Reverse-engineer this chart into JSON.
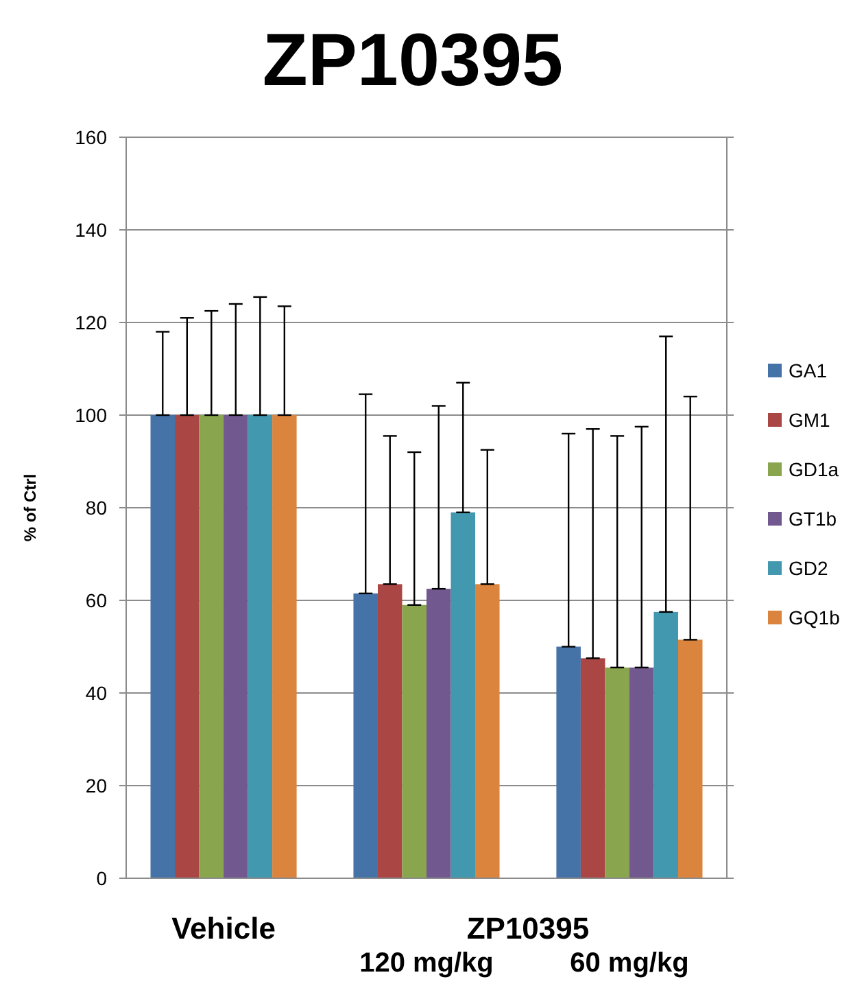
{
  "chart_data": {
    "type": "bar",
    "title": "ZP10395",
    "ylabel": "% of Ctrl",
    "categories": [
      "Vehicle",
      "120 mg/kg",
      "60 mg/kg"
    ],
    "annotations": [
      "ZP10395"
    ],
    "ylim": [
      0,
      160
    ],
    "yticks": [
      0,
      20,
      40,
      60,
      80,
      100,
      120,
      140,
      160
    ],
    "grid": "y",
    "legend": "right",
    "series": [
      {
        "name": "GA1",
        "color": "#4572a7",
        "values": [
          100,
          61.5,
          50
        ],
        "errors": [
          [
            100,
            118
          ],
          [
            61.5,
            104.5
          ],
          [
            50,
            96
          ]
        ]
      },
      {
        "name": "GM1",
        "color": "#aa4643",
        "values": [
          100,
          63.5,
          47.5
        ],
        "errors": [
          [
            100,
            121
          ],
          [
            63.5,
            95.5
          ],
          [
            47.5,
            97
          ]
        ]
      },
      {
        "name": "GD1a",
        "color": "#89a54e",
        "values": [
          100,
          59,
          45.5
        ],
        "errors": [
          [
            100,
            122.5
          ],
          [
            59,
            92
          ],
          [
            45.5,
            95.5
          ]
        ]
      },
      {
        "name": "GT1b",
        "color": "#71588f",
        "values": [
          100,
          62.5,
          45.5
        ],
        "errors": [
          [
            100,
            124
          ],
          [
            62.5,
            102
          ],
          [
            45.5,
            97.5
          ]
        ]
      },
      {
        "name": "GD2",
        "color": "#4198af",
        "values": [
          100,
          79,
          57.5
        ],
        "errors": [
          [
            100,
            125.5
          ],
          [
            79,
            107
          ],
          [
            57.5,
            117
          ]
        ]
      },
      {
        "name": "GQ1b",
        "color": "#db843d",
        "values": [
          100,
          63.5,
          51.5
        ],
        "errors": [
          [
            100,
            123.5
          ],
          [
            63.5,
            92.5
          ],
          [
            51.5,
            104
          ]
        ]
      }
    ]
  }
}
